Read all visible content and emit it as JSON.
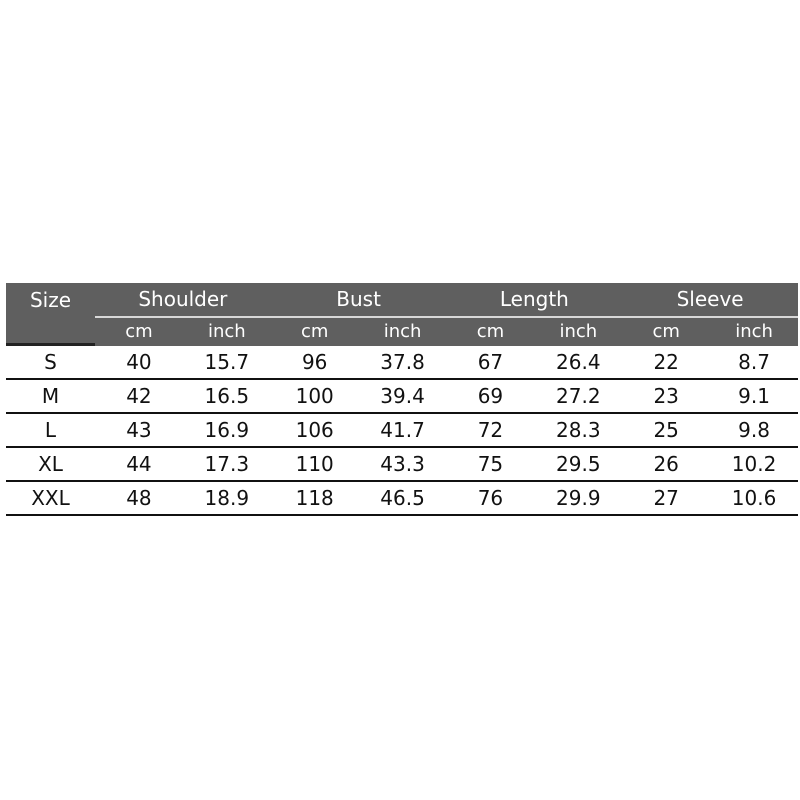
{
  "header": {
    "size_label": "Size",
    "groups": [
      "Shoulder",
      "Bust",
      "Length",
      "Sleeve"
    ],
    "units": [
      "cm",
      "inch",
      "cm",
      "inch",
      "cm",
      "inch",
      "cm",
      "inch"
    ]
  },
  "rows": [
    {
      "size": "S",
      "values": [
        "40",
        "15.7",
        "96",
        "37.8",
        "67",
        "26.4",
        "22",
        "8.7"
      ]
    },
    {
      "size": "M",
      "values": [
        "42",
        "16.5",
        "100",
        "39.4",
        "69",
        "27.2",
        "23",
        "9.1"
      ]
    },
    {
      "size": "L",
      "values": [
        "43",
        "16.9",
        "106",
        "41.7",
        "72",
        "28.3",
        "25",
        "9.8"
      ]
    },
    {
      "size": "XL",
      "values": [
        "44",
        "17.3",
        "110",
        "43.3",
        "75",
        "29.5",
        "26",
        "10.2"
      ]
    },
    {
      "size": "XXL",
      "values": [
        "48",
        "18.9",
        "118",
        "46.5",
        "76",
        "29.9",
        "27",
        "10.6"
      ]
    }
  ],
  "colors": {
    "header_bg": "#5f5f5f",
    "header_text": "#ffffff",
    "rule": "#111111"
  }
}
